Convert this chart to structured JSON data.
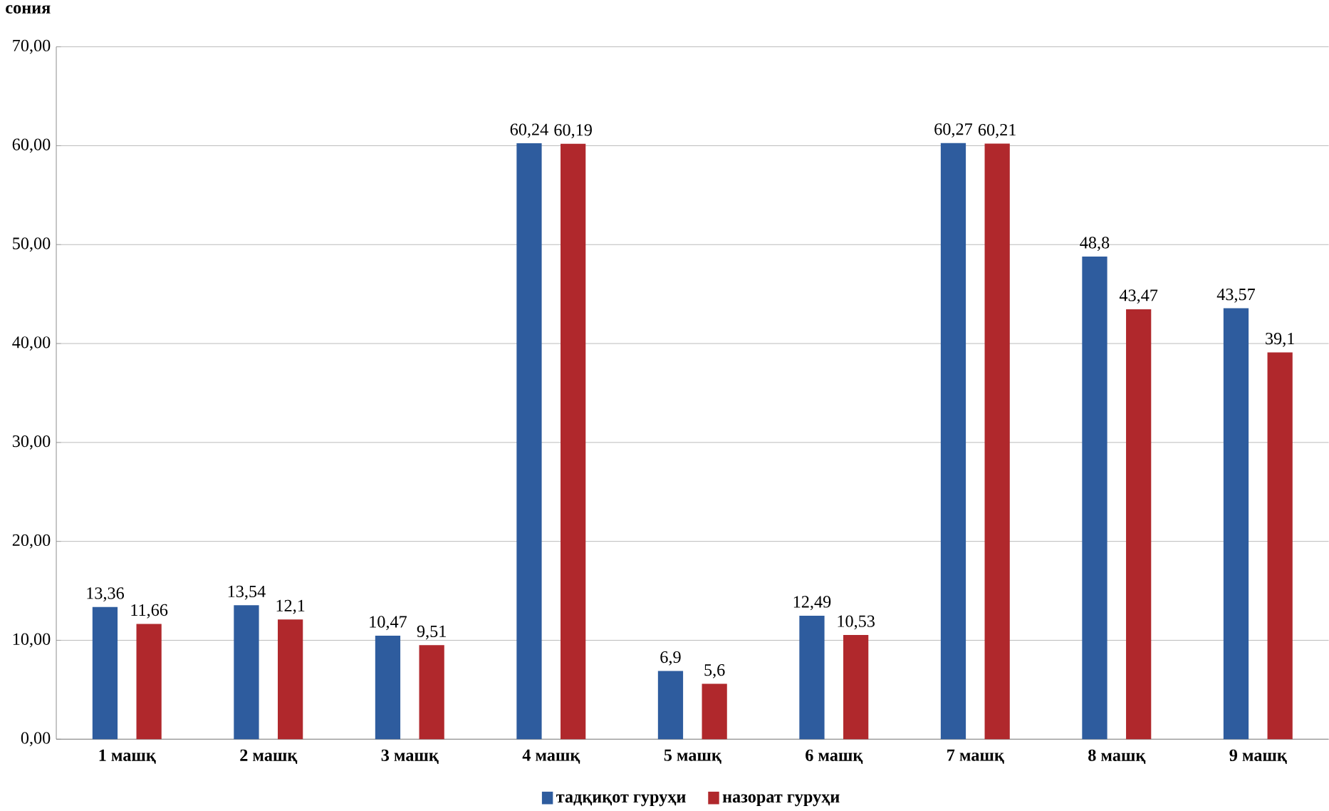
{
  "chart_data": {
    "type": "bar",
    "ylabel": "сония",
    "categories": [
      "1 машқ",
      "2 машқ",
      "3 машқ",
      "4 машқ",
      "5 машқ",
      "6 машқ",
      "7 машқ",
      "8 машқ",
      "9 машқ"
    ],
    "series": [
      {
        "name": "тадқиқот гуруҳи",
        "color": "#2e5c9e",
        "values": [
          13.36,
          13.54,
          10.47,
          60.24,
          6.9,
          12.49,
          60.27,
          48.8,
          43.57
        ],
        "value_labels": [
          "13,36",
          "13,54",
          "10,47",
          "60,24",
          "6,9",
          "12,49",
          "60,27",
          "48,8",
          "43,57"
        ]
      },
      {
        "name": "назорат гуруҳи",
        "color": "#b0282c",
        "values": [
          11.66,
          12.1,
          9.51,
          60.19,
          5.6,
          10.53,
          60.21,
          43.47,
          39.1
        ],
        "value_labels": [
          "11,66",
          "12,1",
          "9,51",
          "60,19",
          "5,6",
          "10,53",
          "60,21",
          "43,47",
          "39,1"
        ]
      }
    ],
    "ylim": [
      0,
      70
    ],
    "yticks": [
      {
        "value": 0,
        "label": "0,00"
      },
      {
        "value": 10,
        "label": "10,00"
      },
      {
        "value": 20,
        "label": "20,00"
      },
      {
        "value": 30,
        "label": "30,00"
      },
      {
        "value": 40,
        "label": "40,00"
      },
      {
        "value": 50,
        "label": "50,00"
      },
      {
        "value": 60,
        "label": "60,00"
      },
      {
        "value": 70,
        "label": "70,00"
      }
    ],
    "grid": "y",
    "legend": "bottom"
  }
}
